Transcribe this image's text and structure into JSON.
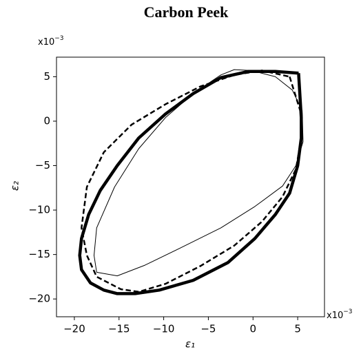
{
  "chart_data": {
    "type": "line",
    "title": "Carbon Peek",
    "xlabel": "ε₁",
    "ylabel": "ε₂",
    "x_multiplier": {
      "base": "x10",
      "exponent": "−3"
    },
    "y_multiplier": {
      "base": "x10",
      "exponent": "−3"
    },
    "xlim": [
      -22,
      8
    ],
    "ylim": [
      -22,
      7.2
    ],
    "xticks": [
      {
        "value": -20,
        "label": "−20"
      },
      {
        "value": -15,
        "label": "−15"
      },
      {
        "value": -10,
        "label": "−10"
      },
      {
        "value": -5,
        "label": "−5"
      },
      0,
      5
    ],
    "yticks": [
      {
        "value": -20,
        "label": "−20"
      },
      {
        "value": -15,
        "label": "−15"
      },
      {
        "value": -10,
        "label": "−10"
      },
      {
        "value": -5,
        "label": "−5"
      },
      0,
      5
    ],
    "grid": false,
    "series": [
      {
        "color": "#000000",
        "linewidth": 4.5,
        "linestyle": "solid",
        "x": [
          5.1,
          5.4,
          5.4,
          5.0,
          4.1,
          2.5,
          0.2,
          -2.8,
          -6.7,
          -10.5,
          -13.2,
          -15.2,
          -16.7,
          -18.2,
          -19.2,
          -19.4,
          -19.2,
          -18.4,
          -17.1,
          -15.2,
          -12.8,
          -9.8,
          -6.7,
          -3.6,
          -0.5,
          2.5,
          5.1
        ],
        "y": [
          5.4,
          0.4,
          -1.9,
          -5.0,
          -8.1,
          -10.5,
          -13.2,
          -15.9,
          -17.9,
          -19.0,
          -19.4,
          -19.4,
          -19.0,
          -18.2,
          -16.7,
          -15.1,
          -13.2,
          -10.5,
          -7.8,
          -5.0,
          -1.9,
          0.8,
          3.1,
          4.9,
          5.6,
          5.6,
          5.4
        ]
      },
      {
        "color": "#000000",
        "linewidth": 2.5,
        "linestyle": "dashed",
        "x": [
          4.1,
          5.4,
          5.4,
          4.8,
          3.3,
          1.0,
          -2.1,
          -5.9,
          -9.8,
          -12.8,
          -14.8,
          -17.5,
          -18.6,
          -19.2,
          -18.6,
          -16.7,
          -13.6,
          -9.8,
          -5.9,
          -2.1,
          1.0,
          4.1
        ],
        "y": [
          5.0,
          0.8,
          -1.9,
          -5.4,
          -8.5,
          -11.3,
          -14.0,
          -16.3,
          -18.3,
          -19.2,
          -18.9,
          -17.5,
          -15.1,
          -12.0,
          -7.4,
          -3.5,
          -0.4,
          1.9,
          3.9,
          5.2,
          5.7,
          5.0
        ]
      },
      {
        "color": "#000000",
        "linewidth": 1,
        "linestyle": "solid",
        "x": [
          -3.6,
          -2.1,
          -0.2,
          2.5,
          4.4,
          5.5,
          5.6,
          4.8,
          3.3,
          0.2,
          -3.6,
          -8.2,
          -12.1,
          -15.2,
          -17.5,
          -17.8,
          -17.5,
          -15.5,
          -12.8,
          -9.8,
          -6.7,
          -3.6
        ],
        "y": [
          5.2,
          5.8,
          5.7,
          5.0,
          3.5,
          1.2,
          -2.3,
          -5.0,
          -7.3,
          -9.6,
          -12.0,
          -14.3,
          -16.2,
          -17.4,
          -17.0,
          -15.1,
          -12.0,
          -7.4,
          -3.1,
          0.4,
          3.1,
          5.2
        ]
      }
    ]
  }
}
